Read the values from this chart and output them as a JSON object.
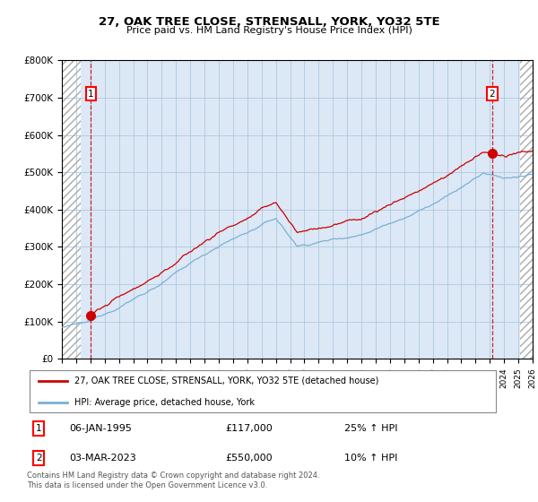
{
  "title": "27, OAK TREE CLOSE, STRENSALL, YORK, YO32 5TE",
  "subtitle": "Price paid vs. HM Land Registry's House Price Index (HPI)",
  "ylim": [
    0,
    800000
  ],
  "yticks": [
    0,
    100000,
    200000,
    300000,
    400000,
    500000,
    600000,
    700000,
    800000
  ],
  "ytick_labels": [
    "£0",
    "£100K",
    "£200K",
    "£300K",
    "£400K",
    "£500K",
    "£600K",
    "£700K",
    "£800K"
  ],
  "hpi_color": "#7ab0d4",
  "price_color": "#cc0000",
  "point1_year": 1995.04,
  "point1_price": 117000,
  "point2_year": 2023.17,
  "point2_price": 550000,
  "legend_line1": "27, OAK TREE CLOSE, STRENSALL, YORK, YO32 5TE (detached house)",
  "legend_line2": "HPI: Average price, detached house, York",
  "table_row1_label": "1",
  "table_row1_date": "06-JAN-1995",
  "table_row1_price": "£117,000",
  "table_row1_hpi": "25% ↑ HPI",
  "table_row2_label": "2",
  "table_row2_date": "03-MAR-2023",
  "table_row2_price": "£550,000",
  "table_row2_hpi": "10% ↑ HPI",
  "footnote": "Contains HM Land Registry data © Crown copyright and database right 2024.\nThis data is licensed under the Open Government Licence v3.0.",
  "bg_hatch_color": "#aaaaaa",
  "bg_main_color": "#dce8f5",
  "grid_color": "#adc8e0",
  "xmin": 1993,
  "xmax": 2026
}
